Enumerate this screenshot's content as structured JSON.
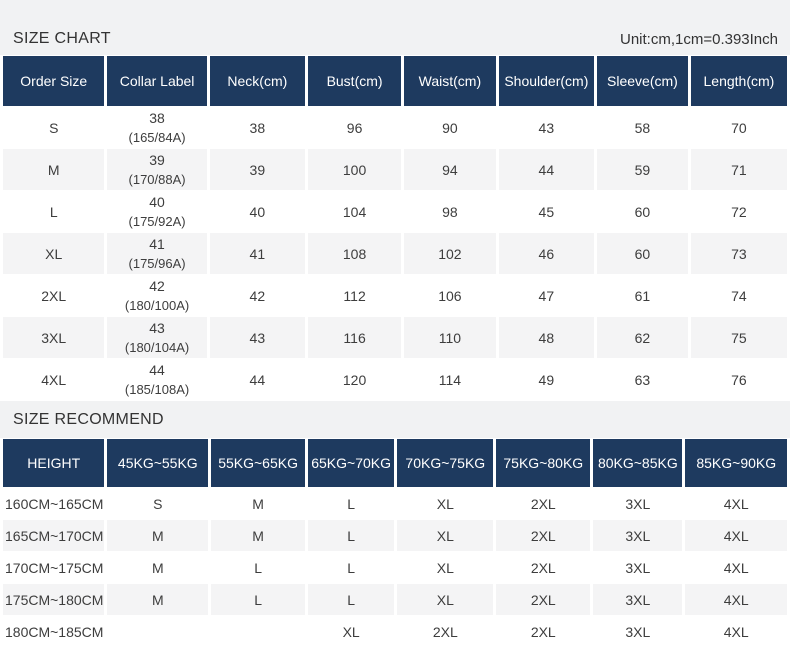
{
  "size_chart": {
    "title": "SIZE CHART",
    "unit_note": "Unit:cm,1cm=0.393Inch",
    "headers": [
      "Order Size",
      "Collar Label",
      "Neck(cm)",
      "Bust(cm)",
      "Waist(cm)",
      "Shoulder(cm)",
      "Sleeve(cm)",
      "Length(cm)"
    ],
    "rows": [
      [
        "S",
        [
          "38",
          "(165/84A)"
        ],
        "38",
        "96",
        "90",
        "43",
        "58",
        "70"
      ],
      [
        "M",
        [
          "39",
          "(170/88A)"
        ],
        "39",
        "100",
        "94",
        "44",
        "59",
        "71"
      ],
      [
        "L",
        [
          "40",
          "(175/92A)"
        ],
        "40",
        "104",
        "98",
        "45",
        "60",
        "72"
      ],
      [
        "XL",
        [
          "41",
          "(175/96A)"
        ],
        "41",
        "108",
        "102",
        "46",
        "60",
        "73"
      ],
      [
        "2XL",
        [
          "42",
          "(180/100A)"
        ],
        "42",
        "112",
        "106",
        "47",
        "61",
        "74"
      ],
      [
        "3XL",
        [
          "43",
          "(180/104A)"
        ],
        "43",
        "116",
        "110",
        "48",
        "62",
        "75"
      ],
      [
        "4XL",
        [
          "44",
          "(185/108A)"
        ],
        "44",
        "120",
        "114",
        "49",
        "63",
        "76"
      ]
    ]
  },
  "size_recommend": {
    "title": "SIZE RECOMMEND",
    "headers": [
      "HEIGHT",
      "45KG~55KG",
      "55KG~65KG",
      "65KG~70KG",
      "70KG~75KG",
      "75KG~80KG",
      "80KG~85KG",
      "85KG~90KG"
    ],
    "rows": [
      [
        "160CM~165CM",
        "S",
        "M",
        "L",
        "XL",
        "2XL",
        "3XL",
        "4XL"
      ],
      [
        "165CM~170CM",
        "M",
        "M",
        "L",
        "XL",
        "2XL",
        "3XL",
        "4XL"
      ],
      [
        "170CM~175CM",
        "M",
        "L",
        "L",
        "XL",
        "2XL",
        "3XL",
        "4XL"
      ],
      [
        "175CM~180CM",
        "M",
        "L",
        "L",
        "XL",
        "2XL",
        "3XL",
        "4XL"
      ],
      [
        "180CM~185CM",
        "",
        "",
        "XL",
        "2XL",
        "2XL",
        "3XL",
        "4XL"
      ]
    ]
  },
  "colors": {
    "header_bg": "#1e3a5f",
    "header_text": "#ffffff",
    "alt_row_bg": "#f4f4f5",
    "band_bg": "#f1f2f3",
    "body_text": "#3d3d3d"
  }
}
